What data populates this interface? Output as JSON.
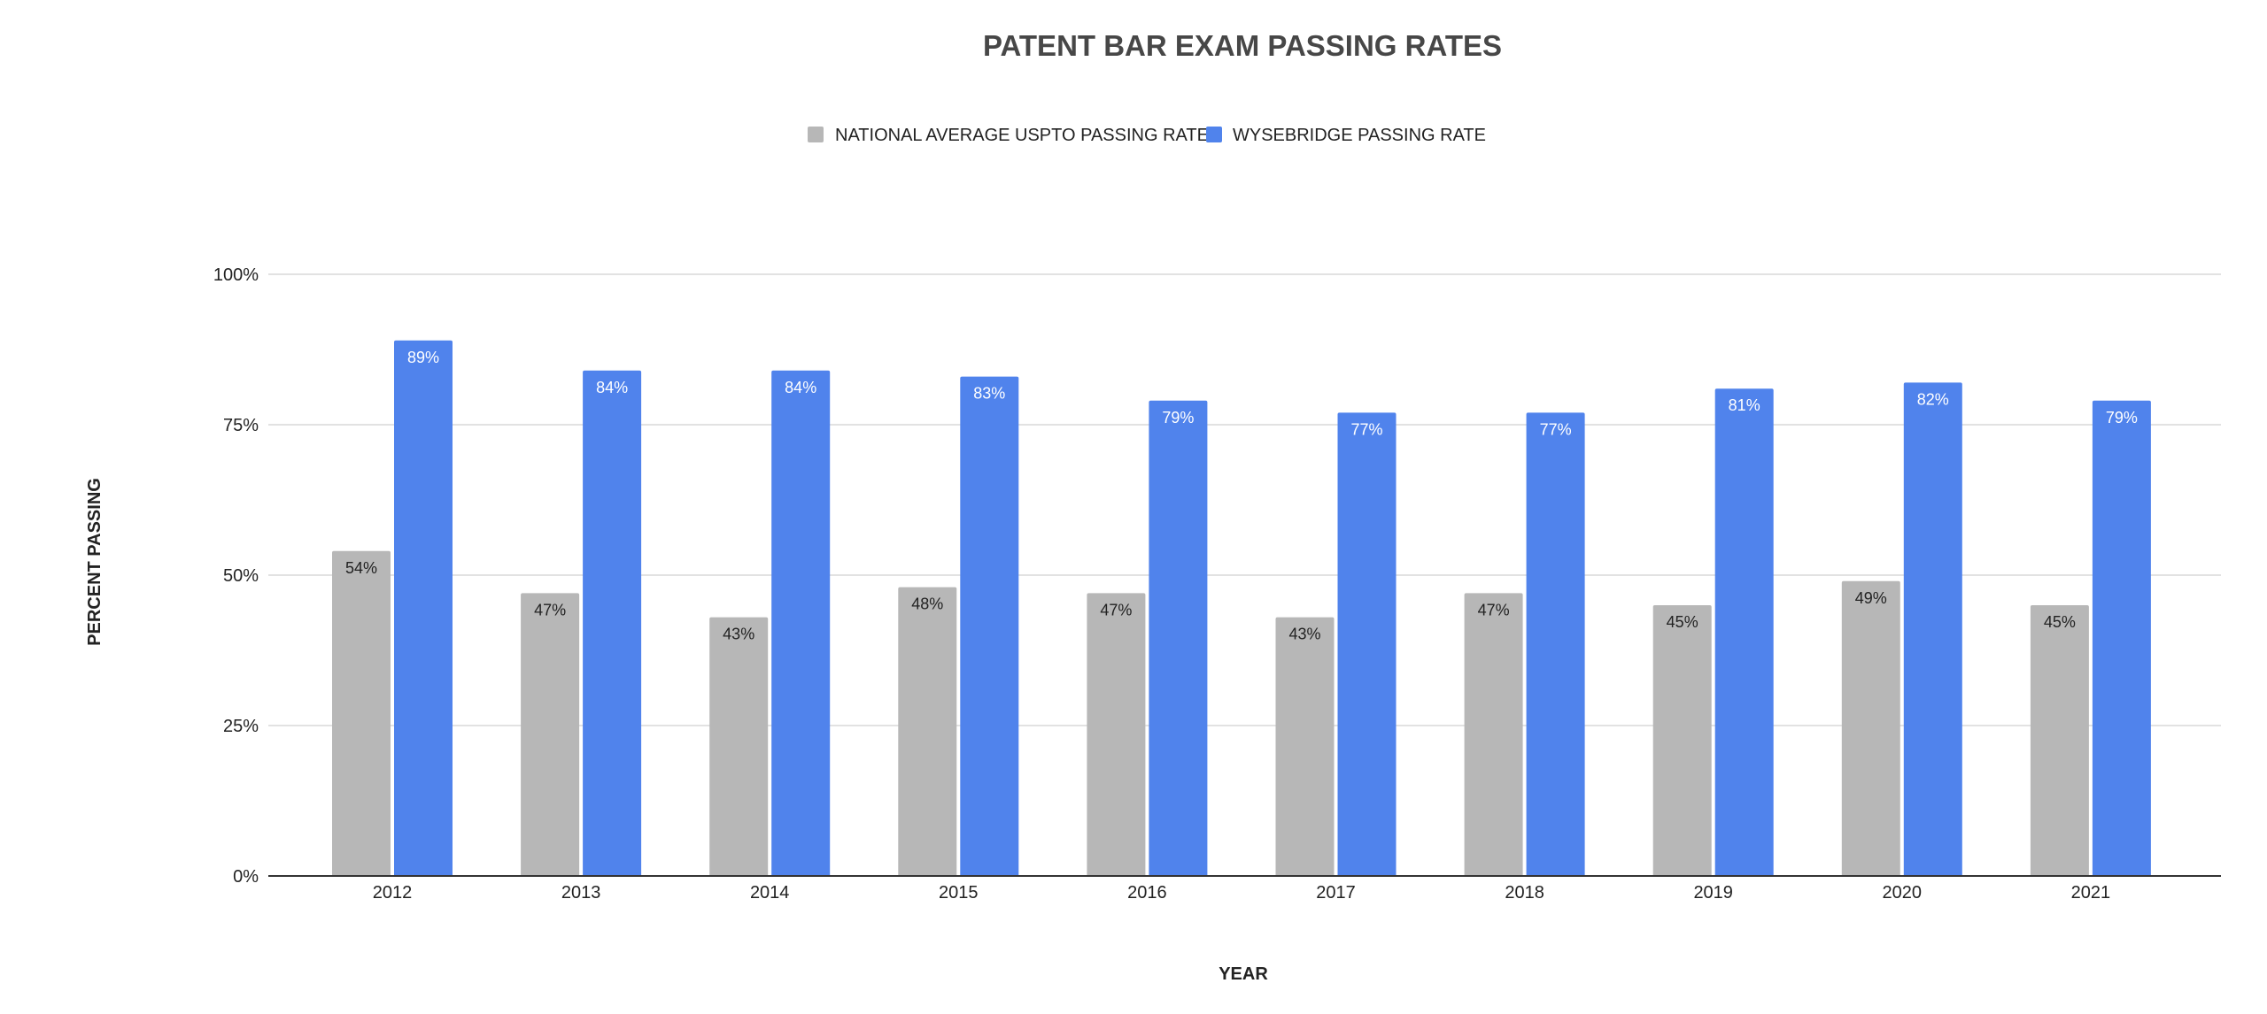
{
  "chart_data": {
    "type": "bar",
    "title": "PATENT BAR EXAM PASSING RATES",
    "xlabel": "YEAR",
    "ylabel": "PERCENT PASSING",
    "categories": [
      "2012",
      "2013",
      "2014",
      "2015",
      "2016",
      "2017",
      "2018",
      "2019",
      "2020",
      "2021"
    ],
    "series": [
      {
        "name": "NATIONAL AVERAGE USPTO PASSING RATE",
        "color": "#b7b7b7",
        "label_color": "#222222",
        "values": [
          54,
          47,
          43,
          48,
          47,
          43,
          47,
          45,
          49,
          45
        ],
        "labels": [
          "54%",
          "47%",
          "43%",
          "48%",
          "47%",
          "43%",
          "47%",
          "45%",
          "49%",
          "45%"
        ]
      },
      {
        "name": "WYSEBRIDGE PASSING RATE",
        "color": "#5083ec",
        "label_color": "#ffffff",
        "values": [
          89,
          84,
          84,
          83,
          79,
          77,
          77,
          81,
          82,
          79
        ],
        "labels": [
          "89%",
          "84%",
          "84%",
          "83%",
          "79%",
          "77%",
          "77%",
          "81%",
          "82%",
          "79%"
        ]
      }
    ],
    "ylim": [
      0,
      100
    ],
    "yticks": [
      0,
      25,
      50,
      75,
      100
    ],
    "ytick_labels": [
      "0%",
      "25%",
      "50%",
      "75%",
      "100%"
    ],
    "grid": true,
    "legend_position": "top-center",
    "grid_color": "#d9d9d9",
    "axis_color": "#333333"
  }
}
